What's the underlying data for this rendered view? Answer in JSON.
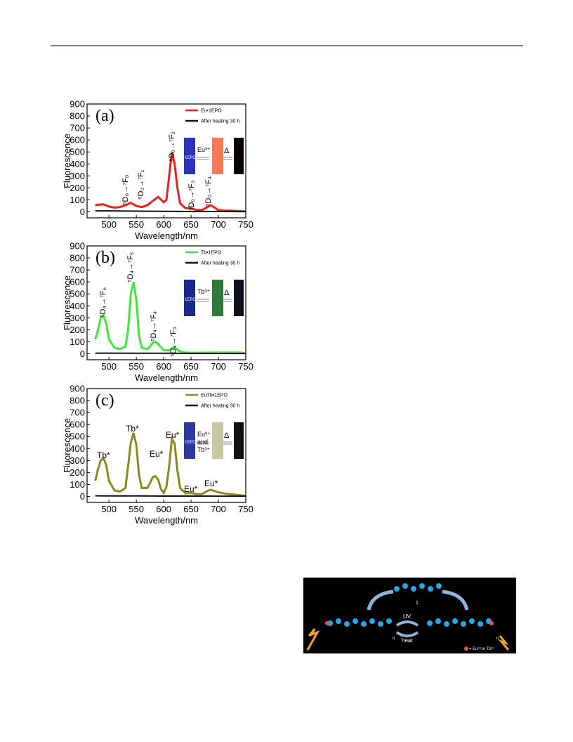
{
  "chart_data": [
    {
      "type": "line",
      "panel": "(a)",
      "ylabel": "Fluorescence",
      "xlabel": "Wavelength/nm",
      "xlim": [
        460,
        750
      ],
      "ylim": [
        -50,
        900
      ],
      "xticks": [
        500,
        550,
        600,
        650,
        700,
        750
      ],
      "yticks": [
        0,
        100,
        200,
        300,
        400,
        500,
        600,
        700,
        800,
        900
      ],
      "series": [
        {
          "name": "Eu•1EPO",
          "color": "#e8231f",
          "x": [
            475,
            480,
            490,
            500,
            510,
            520,
            530,
            540,
            550,
            560,
            570,
            580,
            590,
            600,
            605,
            610,
            615,
            620,
            625,
            630,
            640,
            650,
            660,
            670,
            680,
            685,
            690,
            700,
            710,
            720,
            730,
            740,
            750
          ],
          "values": [
            55,
            60,
            62,
            45,
            35,
            40,
            55,
            75,
            50,
            40,
            55,
            90,
            125,
            80,
            100,
            300,
            500,
            400,
            200,
            70,
            30,
            30,
            15,
            15,
            40,
            55,
            45,
            15,
            10,
            10,
            8,
            5,
            5
          ]
        },
        {
          "name": "After heating 30 h",
          "color": "#111111",
          "x": [
            475,
            500,
            550,
            600,
            650,
            700,
            750
          ],
          "values": [
            8,
            8,
            6,
            4,
            3,
            3,
            2
          ]
        }
      ],
      "annotations": [
        "⁵D₀→⁷F₀",
        "⁵D₀→⁷F₁",
        "⁵D₀→⁷F₂",
        "⁵D₀→⁷F₃",
        "⁵D₀→⁷F₄"
      ],
      "inset": [
        "1EPO",
        "Eu³⁺",
        "Δ"
      ]
    },
    {
      "type": "line",
      "panel": "(b)",
      "ylabel": "Fluorescence",
      "xlabel": "Wavelength/nm",
      "xlim": [
        460,
        750
      ],
      "ylim": [
        -50,
        900
      ],
      "xticks": [
        500,
        550,
        600,
        650,
        700,
        750
      ],
      "yticks": [
        0,
        100,
        200,
        300,
        400,
        500,
        600,
        700,
        800,
        900
      ],
      "series": [
        {
          "name": "Tb•1EPO",
          "color": "#3ee83a",
          "x": [
            475,
            480,
            485,
            490,
            495,
            500,
            510,
            520,
            530,
            535,
            540,
            545,
            550,
            555,
            560,
            570,
            575,
            580,
            585,
            590,
            600,
            610,
            615,
            620,
            625,
            630,
            640,
            650,
            700,
            740,
            750
          ],
          "values": [
            120,
            200,
            300,
            320,
            250,
            120,
            50,
            40,
            60,
            200,
            500,
            600,
            450,
            150,
            50,
            40,
            60,
            90,
            100,
            80,
            30,
            30,
            45,
            50,
            35,
            20,
            10,
            8,
            10,
            10,
            5
          ]
        },
        {
          "name": "After heating 30 h",
          "color": "#111111",
          "x": [
            475,
            500,
            550,
            600,
            650,
            700,
            750
          ],
          "values": [
            5,
            5,
            4,
            4,
            3,
            3,
            2
          ]
        }
      ],
      "annotations": [
        "⁵D₄→⁷F₆",
        "⁵D₄→⁷F₅",
        "⁵D₄→⁷F₄",
        "⁵D₄→⁷F₃"
      ],
      "inset": [
        "1EPO",
        "Tb³⁺",
        "Δ"
      ]
    },
    {
      "type": "line",
      "panel": "(c)",
      "ylabel": "Fluorescence",
      "xlabel": "Wavelength/nm",
      "xlim": [
        460,
        750
      ],
      "ylim": [
        -50,
        900
      ],
      "xticks": [
        500,
        550,
        600,
        650,
        700,
        750
      ],
      "yticks": [
        0,
        100,
        200,
        300,
        400,
        500,
        600,
        700,
        800,
        900
      ],
      "series": [
        {
          "name": "EuTb•1EPO",
          "color": "#8a8a1e",
          "x": [
            475,
            480,
            485,
            490,
            495,
            500,
            510,
            520,
            530,
            535,
            540,
            545,
            550,
            555,
            560,
            570,
            575,
            580,
            585,
            590,
            595,
            600,
            605,
            610,
            615,
            620,
            625,
            630,
            640,
            650,
            660,
            670,
            680,
            685,
            690,
            700,
            710,
            720,
            740,
            750
          ],
          "values": [
            130,
            230,
            300,
            320,
            260,
            130,
            50,
            40,
            70,
            250,
            450,
            530,
            430,
            180,
            70,
            70,
            110,
            160,
            170,
            140,
            60,
            30,
            80,
            250,
            480,
            440,
            220,
            70,
            25,
            30,
            20,
            20,
            45,
            55,
            50,
            35,
            25,
            20,
            10,
            5
          ]
        },
        {
          "name": "After heating 30 h",
          "color": "#111111",
          "x": [
            475,
            500,
            550,
            600,
            650,
            700,
            750
          ],
          "values": [
            5,
            4,
            4,
            3,
            3,
            2,
            2
          ]
        }
      ],
      "annotations": [
        "Tb*",
        "Tb*",
        "Eu*",
        "Eu*",
        "Eu*",
        "Eu*"
      ],
      "inset": [
        "1EPO",
        "Eu³⁺",
        "and",
        "Tb³⁺",
        "Δ"
      ]
    }
  ],
  "figure": {
    "labels": [
      "1",
      "UV",
      "heat",
      "= Eu³⁺or Tb³⁺",
      "n",
      "n"
    ]
  }
}
